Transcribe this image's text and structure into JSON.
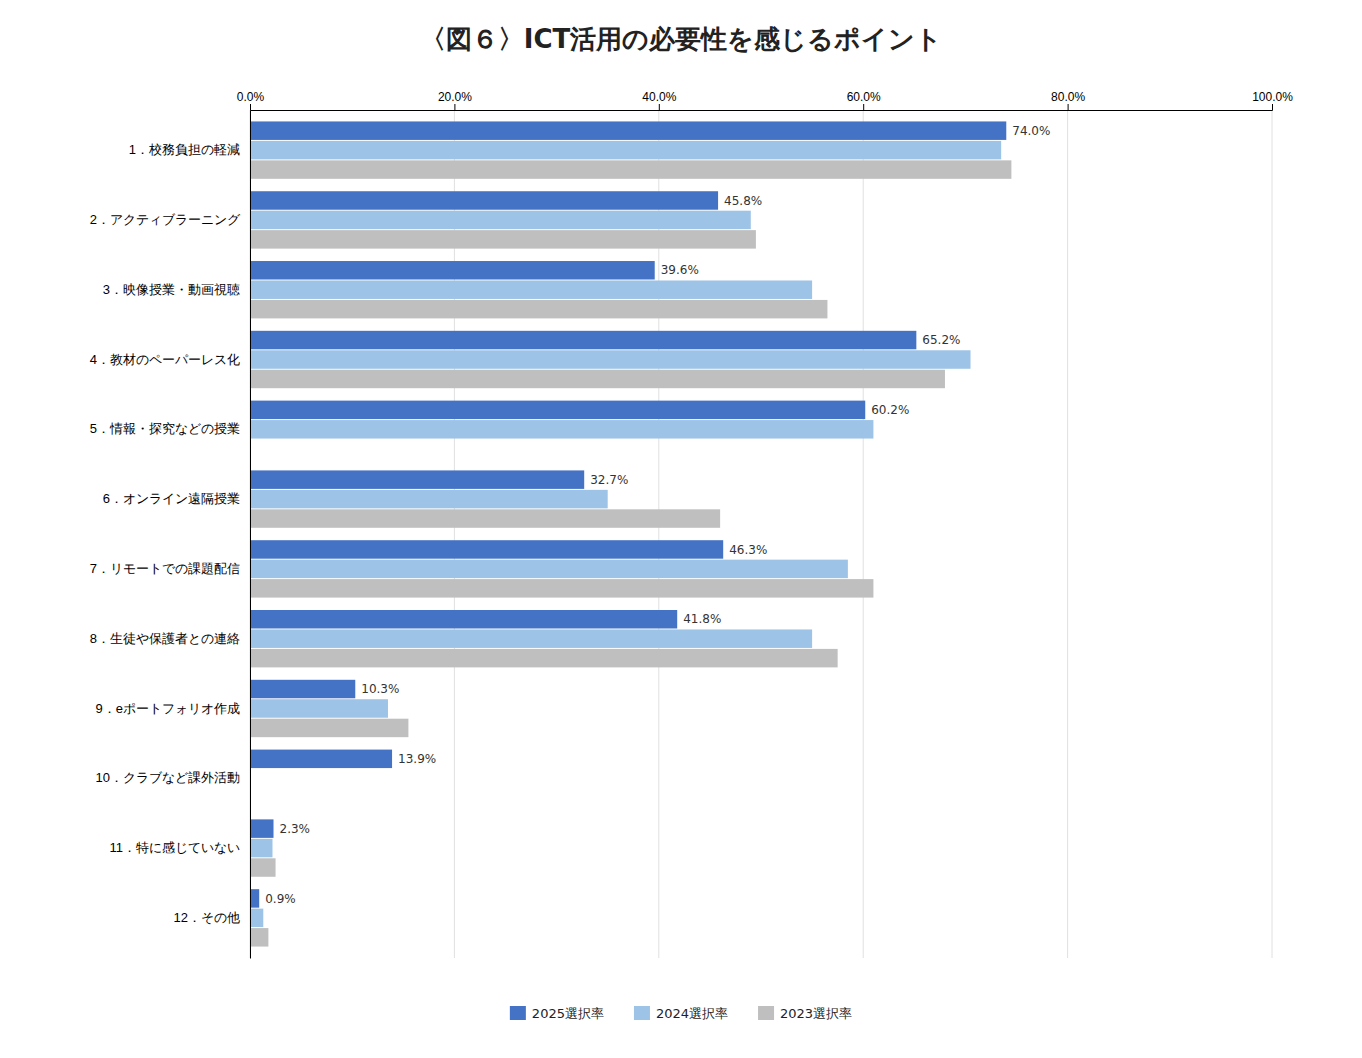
{
  "chart_data": {
    "type": "bar",
    "orientation": "horizontal",
    "title": "〈図６〉ICT活用の必要性を感じるポイント",
    "categories": [
      "1．校務負担の軽減",
      "2．アクティブラーニング",
      "3．映像授業・動画視聴",
      "4．教材のペーパーレス化",
      "5．情報・探究などの授業",
      "6．オンライン遠隔授業",
      "7．リモートでの課題配信",
      "8．生徒や保護者との連絡",
      "9．eポートフォリオ作成",
      "10．クラブなど課外活動",
      "11．特に感じていない",
      "12．その他"
    ],
    "series": [
      {
        "name": "2025選択率",
        "color": "#4472c4",
        "data_labels": true,
        "values": [
          74.0,
          45.8,
          39.6,
          65.2,
          60.2,
          32.7,
          46.3,
          41.8,
          10.3,
          13.9,
          2.3,
          0.9
        ],
        "value_labels": [
          "74.0%",
          "45.8%",
          "39.6%",
          "65.2%",
          "60.2%",
          "32.7%",
          "46.3%",
          "41.8%",
          "10.3%",
          "13.9%",
          "2.3%",
          "0.9%"
        ]
      },
      {
        "name": "2024選択率",
        "color": "#9dc3e6",
        "values": [
          73.5,
          49.0,
          55.0,
          70.5,
          61.0,
          35.0,
          58.5,
          55.0,
          13.5,
          0.0,
          2.2,
          1.3
        ]
      },
      {
        "name": "2023選択率",
        "color": "#bfbfbf",
        "values": [
          74.5,
          49.5,
          56.5,
          68.0,
          0.0,
          46.0,
          61.0,
          57.5,
          15.5,
          0.0,
          2.5,
          1.8
        ]
      }
    ],
    "xlim": [
      0,
      100
    ],
    "xticks": [
      {
        "value": 0,
        "label": "0.0%"
      },
      {
        "value": 20,
        "label": "20.0%"
      },
      {
        "value": 40,
        "label": "40.0%"
      },
      {
        "value": 60,
        "label": "60.0%"
      },
      {
        "value": 80,
        "label": "80.0%"
      },
      {
        "value": 100,
        "label": "100.0%"
      }
    ],
    "grid": true,
    "legend": "bottom"
  }
}
